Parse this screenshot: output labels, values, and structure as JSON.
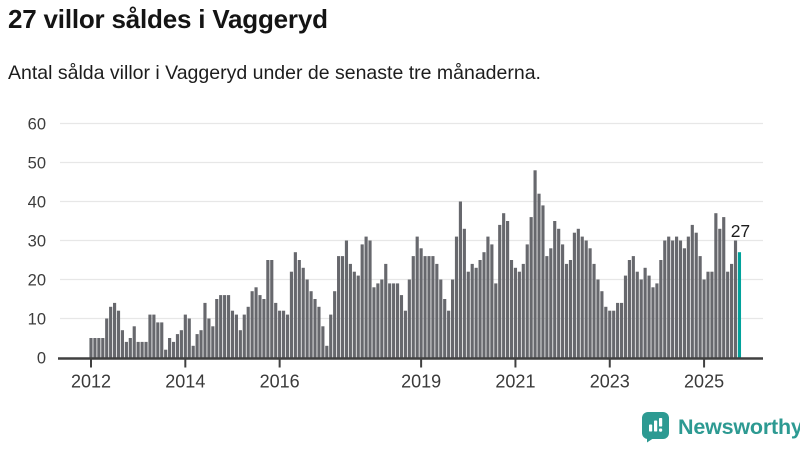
{
  "header": {
    "title": "27 villor såldes i Vaggeryd",
    "subtitle": "Antal sålda villor i Vaggeryd under de senaste tre månaderna."
  },
  "chart_data": {
    "type": "bar",
    "title": "27 villor såldes i Vaggeryd",
    "subtitle": "Antal sålda villor i Vaggeryd under de senaste tre månaderna.",
    "x_description": "Monthly rolling three-month totals",
    "start_month": "2012-01",
    "end_month": "2025-10",
    "values": [
      5,
      5,
      5,
      5,
      10,
      13,
      14,
      12,
      7,
      4,
      5,
      8,
      4,
      4,
      4,
      11,
      11,
      9,
      9,
      2,
      5,
      4,
      6,
      7,
      11,
      10,
      3,
      6,
      7,
      14,
      10,
      8,
      15,
      16,
      16,
      16,
      12,
      11,
      7,
      11,
      13,
      17,
      18,
      16,
      15,
      25,
      25,
      14,
      12,
      12,
      11,
      22,
      27,
      25,
      23,
      20,
      17,
      15,
      13,
      8,
      3,
      11,
      17,
      26,
      26,
      30,
      24,
      22,
      21,
      29,
      31,
      30,
      18,
      19,
      20,
      24,
      19,
      19,
      19,
      16,
      12,
      20,
      26,
      31,
      28,
      26,
      26,
      26,
      24,
      20,
      15,
      12,
      20,
      31,
      40,
      33,
      22,
      24,
      23,
      25,
      27,
      31,
      29,
      19,
      34,
      37,
      35,
      25,
      23,
      22,
      24,
      29,
      36,
      48,
      42,
      39,
      26,
      28,
      35,
      33,
      29,
      24,
      25,
      32,
      33,
      31,
      30,
      28,
      24,
      20,
      17,
      13,
      12,
      12,
      14,
      14,
      21,
      25,
      26,
      22,
      20,
      23,
      21,
      18,
      19,
      25,
      30,
      31,
      30,
      31,
      30,
      28,
      31,
      34,
      32,
      26,
      20,
      22,
      22,
      37,
      33,
      36,
      22,
      24,
      30,
      27
    ],
    "highlight_last": true,
    "last_value_label": "27",
    "y_ticks": [
      0,
      10,
      20,
      30,
      40,
      50,
      60
    ],
    "ylim": [
      0,
      60
    ],
    "x_ticks": [
      {
        "label": "2012",
        "index": 0
      },
      {
        "label": "2014",
        "index": 24
      },
      {
        "label": "2016",
        "index": 48
      },
      {
        "label": "2019",
        "index": 84
      },
      {
        "label": "2021",
        "index": 108
      },
      {
        "label": "2023",
        "index": 132
      },
      {
        "label": "2025",
        "index": 156
      }
    ],
    "grid": true,
    "legend": "none",
    "bar_color": "#67686d",
    "highlight_color": "#00a29b",
    "grid_color": "#e7e7e7",
    "axis_color": "#404040",
    "tick_label_color": "#3a3a3a",
    "annotation_color": "#1d1d1d"
  },
  "branding": {
    "logo_text": "Newsworthy",
    "logo_icon": "bar-chart-speech-bubble-icon",
    "logo_color": "#2d9a92"
  }
}
